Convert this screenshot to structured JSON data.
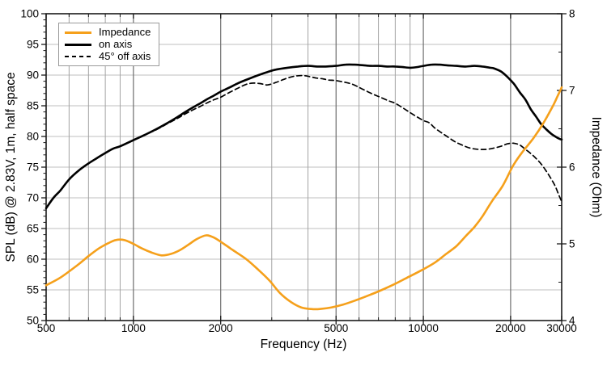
{
  "chart_data": {
    "type": "line",
    "title": "",
    "xlabel": "Frequency (Hz)",
    "ylabel_left": "SPL (dB) @ 2.83V, 1m, half space",
    "ylabel_right": "Impedance (Ohm)",
    "x_scale": "log",
    "xlim": [
      500,
      30000
    ],
    "ylim_left": [
      50,
      100
    ],
    "ylim_right": [
      4,
      8
    ],
    "grid": "on",
    "x_major_ticks": [
      {
        "v": 500,
        "label": "500"
      },
      {
        "v": 1000,
        "label": "1000"
      },
      {
        "v": 2000,
        "label": "2000"
      },
      {
        "v": 5000,
        "label": "5000"
      },
      {
        "v": 10000,
        "label": "10000"
      },
      {
        "v": 20000,
        "label": "20000"
      },
      {
        "v": 30000,
        "label": "30000"
      }
    ],
    "x_minor_ticks": [
      600,
      700,
      800,
      900,
      3000,
      4000,
      6000,
      7000,
      8000,
      9000
    ],
    "y_left_ticks": [
      {
        "v": 50,
        "label": "50"
      },
      {
        "v": 55,
        "label": "55"
      },
      {
        "v": 60,
        "label": "60"
      },
      {
        "v": 65,
        "label": "65"
      },
      {
        "v": 70,
        "label": "70"
      },
      {
        "v": 75,
        "label": "75"
      },
      {
        "v": 80,
        "label": "80"
      },
      {
        "v": 85,
        "label": "85"
      },
      {
        "v": 90,
        "label": "90"
      },
      {
        "v": 95,
        "label": "95"
      },
      {
        "v": 100,
        "label": "100"
      }
    ],
    "y_left_minor_step": 1,
    "y_right_ticks": [
      {
        "v": 4,
        "label": "4"
      },
      {
        "v": 5,
        "label": "5"
      },
      {
        "v": 6,
        "label": "6"
      },
      {
        "v": 7,
        "label": "7"
      },
      {
        "v": 8,
        "label": "8"
      }
    ],
    "y_right_minor_step": 0.5,
    "colors": {
      "impedance": "#F5A01B",
      "on_axis": "#000000",
      "off_axis": "#000000",
      "grid_h": "#bfbfbf",
      "grid_v_minor": "#a3a3a3",
      "grid_v_major": "#6e6e6e",
      "border": "#1a1a1a"
    },
    "legend": {
      "position": "top-left",
      "entries": [
        {
          "label": "Impedance",
          "series": "impedance",
          "style": "solid",
          "color": "#F5A01B"
        },
        {
          "label": "on axis",
          "series": "on_axis",
          "style": "solid",
          "color": "#000000"
        },
        {
          "label": "45° off axis",
          "series": "off_axis",
          "style": "dashed",
          "color": "#000000"
        }
      ]
    },
    "series": [
      {
        "key": "off_axis",
        "name": "45° off axis",
        "axis": "left",
        "style": "dashed",
        "color": "#000000",
        "points": [
          [
            500,
            68.3
          ],
          [
            530,
            70.0
          ],
          [
            560,
            71.2
          ],
          [
            600,
            73.0
          ],
          [
            650,
            74.5
          ],
          [
            700,
            75.6
          ],
          [
            750,
            76.5
          ],
          [
            800,
            77.3
          ],
          [
            850,
            78.0
          ],
          [
            900,
            78.4
          ],
          [
            1000,
            79.4
          ],
          [
            1100,
            80.3
          ],
          [
            1200,
            81.1
          ],
          [
            1300,
            82.0
          ],
          [
            1400,
            82.8
          ],
          [
            1500,
            83.6
          ],
          [
            1600,
            84.3
          ],
          [
            1700,
            84.9
          ],
          [
            1800,
            85.5
          ],
          [
            1900,
            86.0
          ],
          [
            2000,
            86.4
          ],
          [
            2150,
            87.2
          ],
          [
            2300,
            87.9
          ],
          [
            2450,
            88.5
          ],
          [
            2600,
            88.7
          ],
          [
            2750,
            88.6
          ],
          [
            2900,
            88.4
          ],
          [
            3100,
            88.8
          ],
          [
            3300,
            89.3
          ],
          [
            3500,
            89.7
          ],
          [
            3700,
            89.9
          ],
          [
            3900,
            89.9
          ],
          [
            4100,
            89.7
          ],
          [
            4300,
            89.5
          ],
          [
            4500,
            89.4
          ],
          [
            4700,
            89.2
          ],
          [
            5000,
            89.1
          ],
          [
            5400,
            88.8
          ],
          [
            5700,
            88.5
          ],
          [
            6000,
            88.0
          ],
          [
            6300,
            87.5
          ],
          [
            6700,
            86.9
          ],
          [
            7100,
            86.4
          ],
          [
            7600,
            85.8
          ],
          [
            8000,
            85.4
          ],
          [
            8600,
            84.5
          ],
          [
            9200,
            83.6
          ],
          [
            10000,
            82.6
          ],
          [
            10500,
            82.2
          ],
          [
            11000,
            81.3
          ],
          [
            11900,
            80.2
          ],
          [
            12800,
            79.2
          ],
          [
            13600,
            78.6
          ],
          [
            14500,
            78.1
          ],
          [
            15500,
            77.9
          ],
          [
            16500,
            77.9
          ],
          [
            17500,
            78.1
          ],
          [
            18500,
            78.4
          ],
          [
            19500,
            78.8
          ],
          [
            20500,
            78.9
          ],
          [
            21500,
            78.6
          ],
          [
            22500,
            77.9
          ],
          [
            23500,
            77.2
          ],
          [
            24500,
            76.4
          ],
          [
            25500,
            75.5
          ],
          [
            26500,
            74.4
          ],
          [
            27500,
            73.2
          ],
          [
            28500,
            71.9
          ],
          [
            29300,
            70.5
          ],
          [
            30000,
            69.4
          ]
        ]
      },
      {
        "key": "on_axis",
        "name": "on axis",
        "axis": "left",
        "style": "solid",
        "color": "#000000",
        "points": [
          [
            500,
            68.3
          ],
          [
            530,
            70.0
          ],
          [
            560,
            71.2
          ],
          [
            600,
            73.0
          ],
          [
            650,
            74.5
          ],
          [
            700,
            75.6
          ],
          [
            750,
            76.5
          ],
          [
            800,
            77.3
          ],
          [
            850,
            78.0
          ],
          [
            900,
            78.4
          ],
          [
            1000,
            79.4
          ],
          [
            1100,
            80.3
          ],
          [
            1200,
            81.2
          ],
          [
            1300,
            82.1
          ],
          [
            1400,
            83.0
          ],
          [
            1500,
            83.9
          ],
          [
            1600,
            84.7
          ],
          [
            1700,
            85.4
          ],
          [
            1800,
            86.1
          ],
          [
            1900,
            86.7
          ],
          [
            2000,
            87.3
          ],
          [
            2150,
            88.0
          ],
          [
            2300,
            88.7
          ],
          [
            2500,
            89.4
          ],
          [
            2700,
            90.0
          ],
          [
            2900,
            90.5
          ],
          [
            3100,
            90.9
          ],
          [
            3400,
            91.2
          ],
          [
            3700,
            91.4
          ],
          [
            4000,
            91.5
          ],
          [
            4300,
            91.4
          ],
          [
            4600,
            91.4
          ],
          [
            5000,
            91.5
          ],
          [
            5400,
            91.7
          ],
          [
            5800,
            91.7
          ],
          [
            6200,
            91.6
          ],
          [
            6600,
            91.5
          ],
          [
            7000,
            91.5
          ],
          [
            7500,
            91.4
          ],
          [
            8000,
            91.4
          ],
          [
            8500,
            91.3
          ],
          [
            9000,
            91.2
          ],
          [
            9500,
            91.3
          ],
          [
            10000,
            91.5
          ],
          [
            10700,
            91.7
          ],
          [
            11400,
            91.7
          ],
          [
            12000,
            91.6
          ],
          [
            13000,
            91.5
          ],
          [
            14000,
            91.4
          ],
          [
            15000,
            91.5
          ],
          [
            16000,
            91.4
          ],
          [
            17000,
            91.2
          ],
          [
            17500,
            91.1
          ],
          [
            18500,
            90.6
          ],
          [
            19500,
            89.7
          ],
          [
            20500,
            88.6
          ],
          [
            21500,
            87.2
          ],
          [
            22500,
            86.0
          ],
          [
            23500,
            84.4
          ],
          [
            24500,
            83.2
          ],
          [
            25500,
            82.0
          ],
          [
            26500,
            81.2
          ],
          [
            27500,
            80.5
          ],
          [
            28500,
            80.0
          ],
          [
            29500,
            79.6
          ],
          [
            30000,
            79.5
          ]
        ]
      },
      {
        "key": "impedance",
        "name": "Impedance",
        "axis": "right",
        "style": "solid",
        "color": "#F5A01B",
        "points": [
          [
            500,
            4.46
          ],
          [
            560,
            4.56
          ],
          [
            640,
            4.72
          ],
          [
            700,
            4.84
          ],
          [
            760,
            4.94
          ],
          [
            820,
            5.01
          ],
          [
            870,
            5.05
          ],
          [
            930,
            5.05
          ],
          [
            1000,
            5.0
          ],
          [
            1070,
            4.94
          ],
          [
            1150,
            4.89
          ],
          [
            1250,
            4.85
          ],
          [
            1350,
            4.87
          ],
          [
            1450,
            4.92
          ],
          [
            1550,
            4.99
          ],
          [
            1650,
            5.06
          ],
          [
            1780,
            5.11
          ],
          [
            1900,
            5.08
          ],
          [
            2050,
            5.0
          ],
          [
            2200,
            4.92
          ],
          [
            2450,
            4.8
          ],
          [
            2700,
            4.66
          ],
          [
            2950,
            4.52
          ],
          [
            3200,
            4.36
          ],
          [
            3500,
            4.24
          ],
          [
            3800,
            4.17
          ],
          [
            4100,
            4.15
          ],
          [
            4400,
            4.15
          ],
          [
            4800,
            4.17
          ],
          [
            5300,
            4.21
          ],
          [
            5900,
            4.27
          ],
          [
            6500,
            4.33
          ],
          [
            7200,
            4.4
          ],
          [
            8000,
            4.48
          ],
          [
            8800,
            4.56
          ],
          [
            9800,
            4.65
          ],
          [
            11000,
            4.76
          ],
          [
            12000,
            4.87
          ],
          [
            13000,
            4.97
          ],
          [
            14000,
            5.1
          ],
          [
            15000,
            5.22
          ],
          [
            16000,
            5.36
          ],
          [
            17200,
            5.55
          ],
          [
            18800,
            5.76
          ],
          [
            20400,
            6.02
          ],
          [
            22000,
            6.2
          ],
          [
            24000,
            6.38
          ],
          [
            26000,
            6.58
          ],
          [
            28000,
            6.8
          ],
          [
            29000,
            6.92
          ],
          [
            30000,
            7.04
          ]
        ]
      }
    ]
  }
}
